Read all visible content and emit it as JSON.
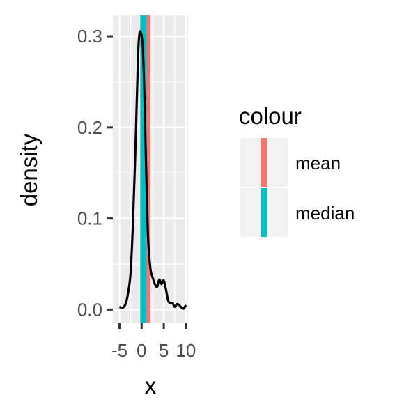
{
  "chart_data": {
    "type": "line",
    "title": "",
    "xlabel": "x",
    "ylabel": "density",
    "xlim": [
      -6.5,
      10.5
    ],
    "ylim": [
      -0.015,
      0.323
    ],
    "x_ticks": [
      -5,
      0,
      5,
      10
    ],
    "x_tick_labels": [
      "-5",
      "0",
      "5",
      "10"
    ],
    "y_ticks": [
      0.0,
      0.1,
      0.2,
      0.3
    ],
    "y_tick_labels": [
      "0.0",
      "0.1",
      "0.2",
      "0.3"
    ],
    "grid": true,
    "density": {
      "x": [
        -5.0,
        -4.5,
        -4.0,
        -3.5,
        -3.0,
        -2.5,
        -2.0,
        -1.5,
        -1.0,
        -0.7,
        -0.4,
        0.0,
        0.3,
        0.6,
        0.9,
        1.2,
        1.5,
        2.0,
        2.5,
        3.0,
        3.5,
        4.0,
        4.5,
        5.0,
        5.5,
        6.0,
        6.5,
        7.0,
        7.5,
        8.0,
        8.5,
        9.0,
        9.5,
        10.0
      ],
      "y": [
        0.003,
        0.002,
        0.003,
        0.008,
        0.02,
        0.04,
        0.09,
        0.16,
        0.245,
        0.29,
        0.305,
        0.3,
        0.285,
        0.24,
        0.18,
        0.12,
        0.075,
        0.045,
        0.035,
        0.028,
        0.025,
        0.033,
        0.028,
        0.032,
        0.022,
        0.01,
        0.007,
        0.007,
        0.003,
        0.006,
        0.005,
        0.002,
        0.001,
        0.005
      ]
    },
    "vlines": [
      {
        "name": "mean",
        "x": 1.2,
        "color": "#F8766D"
      },
      {
        "name": "median",
        "x": 0.4,
        "color": "#00BFC4"
      }
    ],
    "legend": {
      "title": "colour",
      "placement": "right",
      "entries": [
        {
          "label": "mean",
          "color": "#F8766D"
        },
        {
          "label": "median",
          "color": "#00BFC4"
        }
      ]
    },
    "panel_background": "#EBEBEB",
    "line_color": "#000000"
  }
}
